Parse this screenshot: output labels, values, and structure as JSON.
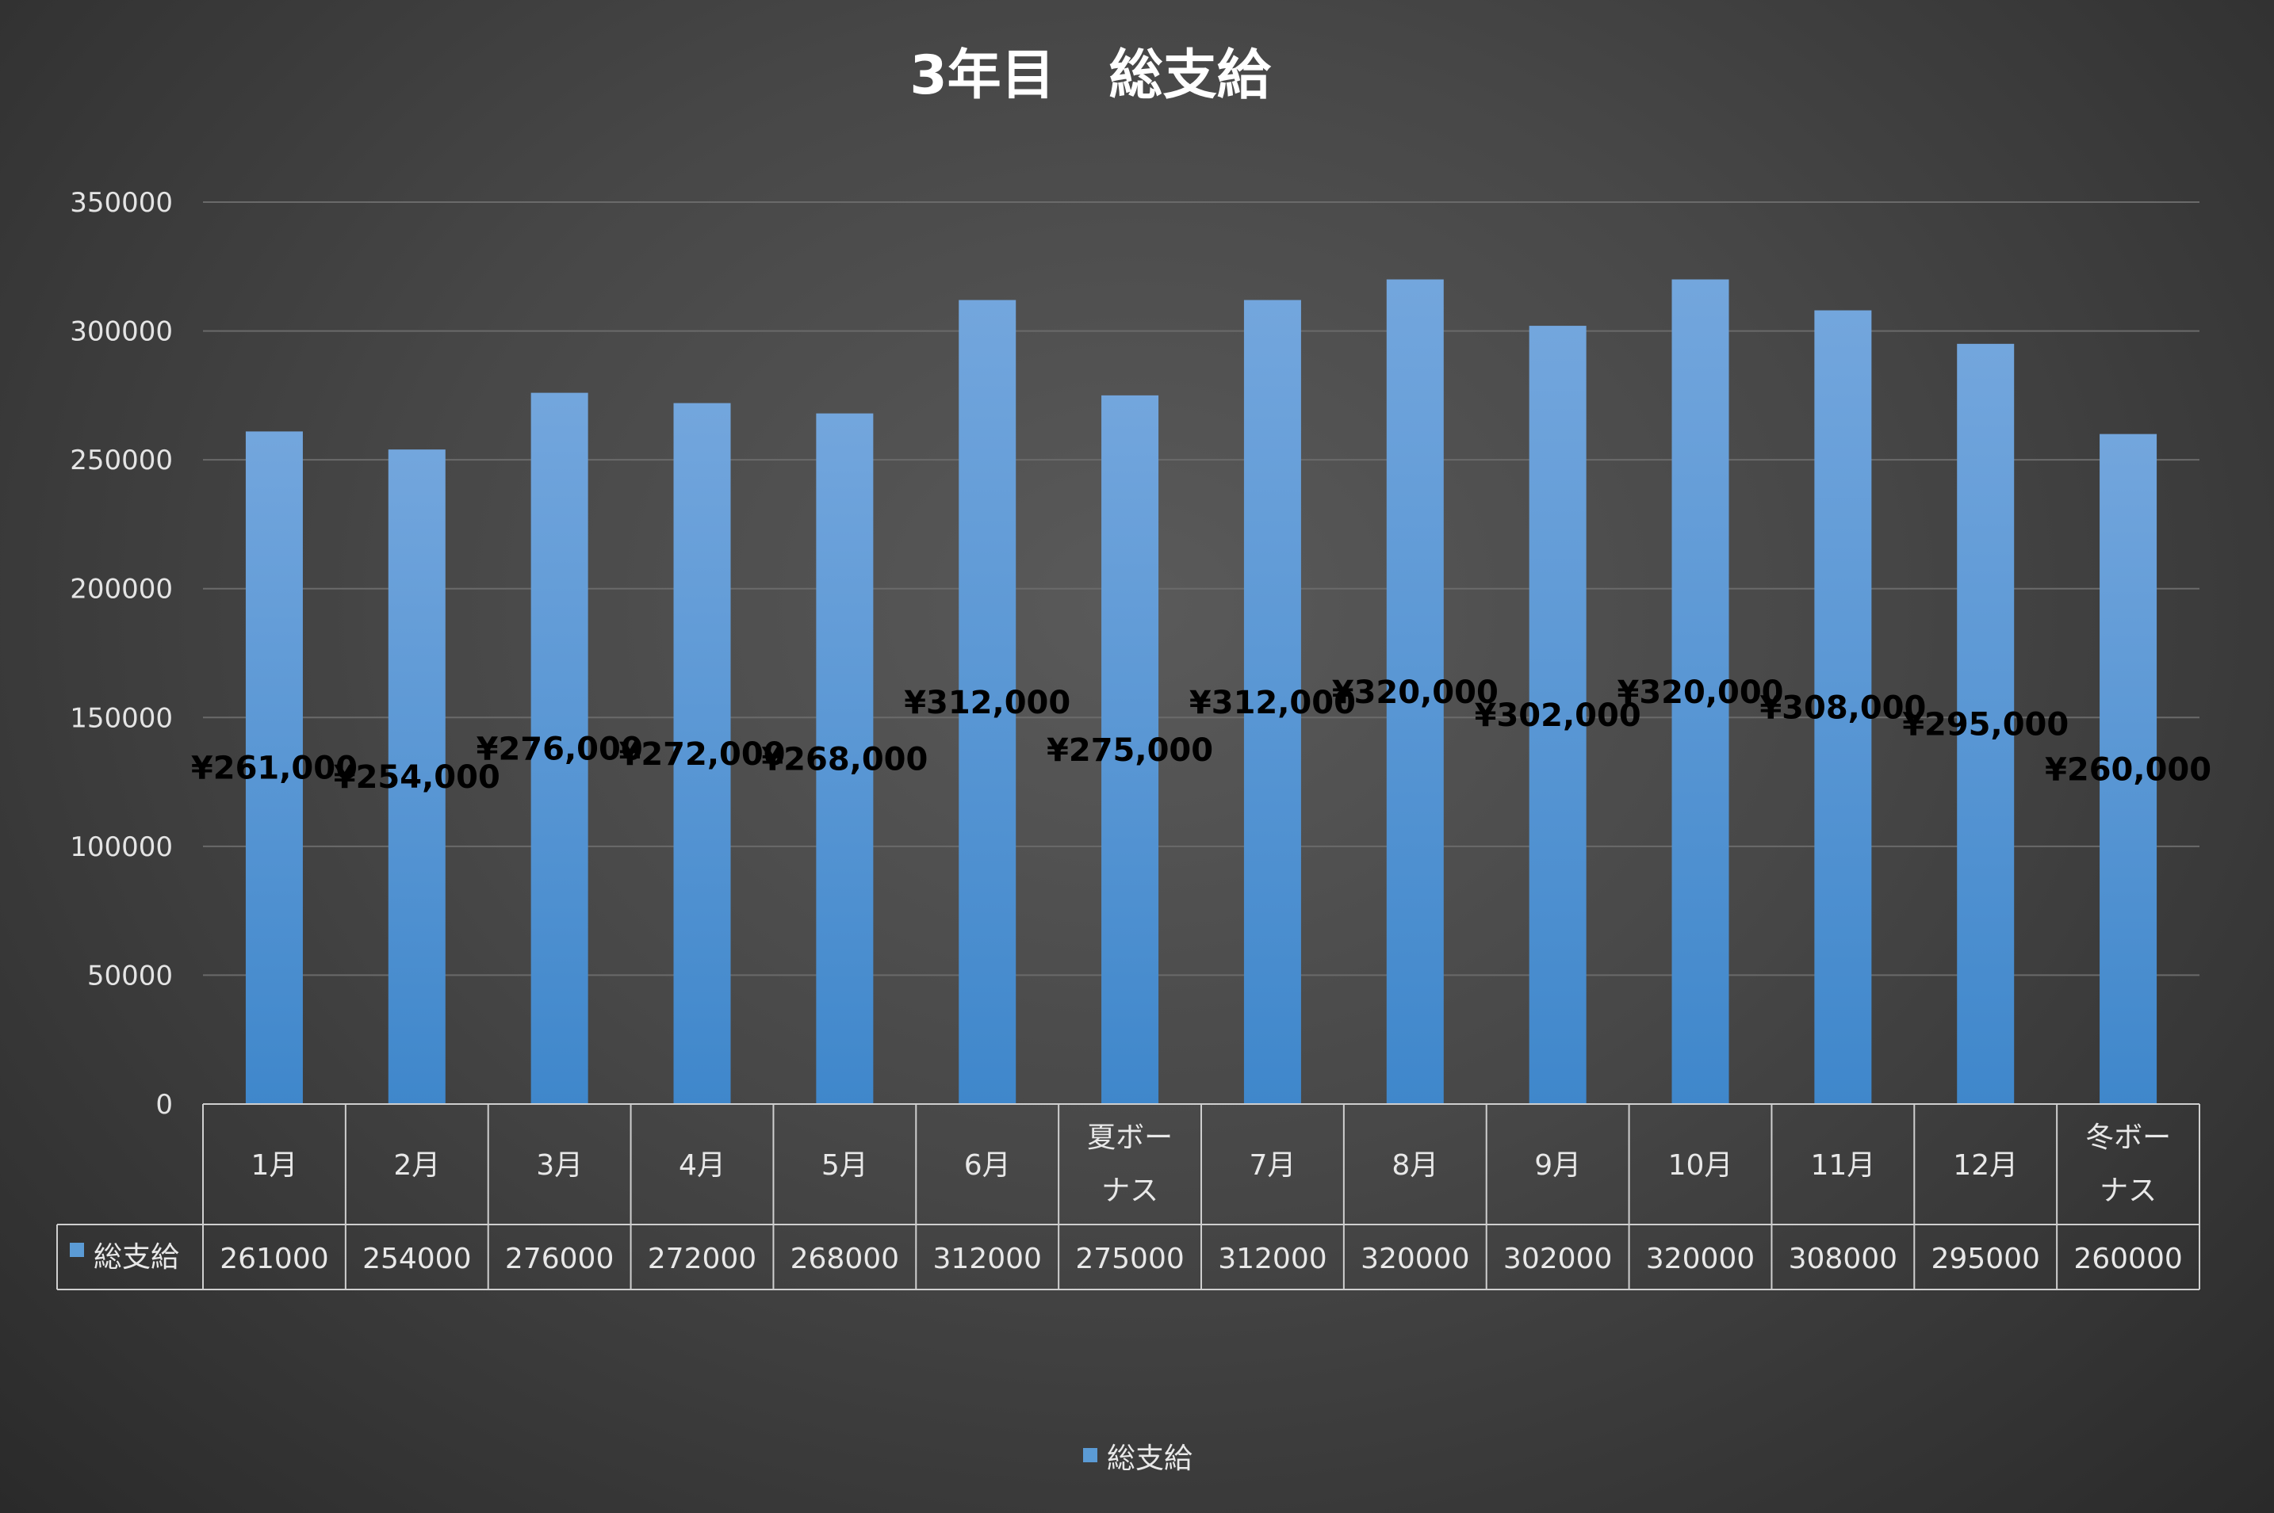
{
  "chart_data": {
    "type": "bar",
    "title": "3年目　総支給",
    "categories": [
      "1月",
      "2月",
      "3月",
      "4月",
      "5月",
      "6月",
      "夏ボーナス",
      "7月",
      "8月",
      "9月",
      "10月",
      "11月",
      "12月",
      "冬ボーナス"
    ],
    "series": [
      {
        "name": "総支給",
        "values": [
          261000,
          254000,
          276000,
          272000,
          268000,
          312000,
          275000,
          312000,
          320000,
          302000,
          320000,
          308000,
          295000,
          260000
        ],
        "data_labels": [
          "¥261,000",
          "¥254,000",
          "¥276,000",
          "¥272,000",
          "¥268,000",
          "¥312,000",
          "¥275,000",
          "¥312,000",
          "¥320,000",
          "¥302,000",
          "¥320,000",
          "¥308,000",
          "¥295,000",
          "¥260,000"
        ],
        "table_values": [
          "261000",
          "254000",
          "276000",
          "272000",
          "268000",
          "312000",
          "275000",
          "312000",
          "320000",
          "302000",
          "320000",
          "308000",
          "295000",
          "260000"
        ],
        "color": "#5b9bd5"
      }
    ],
    "y_ticks": [
      "0",
      "50000",
      "100000",
      "150000",
      "200000",
      "250000",
      "300000",
      "350000"
    ],
    "ylim": [
      0,
      350000
    ],
    "grid": true,
    "legend": "bottom",
    "data_table": true,
    "xlabel": "",
    "ylabel": ""
  },
  "colors": {
    "bar_top": "#73a6dd",
    "bar_bottom": "#3f87cb",
    "legend_swatch": "#5b9bd5",
    "gridline": "#6a6a6a",
    "table_border": "#cfcfcf"
  }
}
